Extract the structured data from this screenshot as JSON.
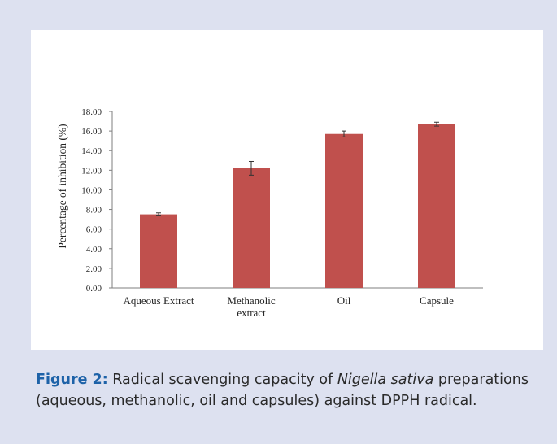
{
  "colors": {
    "background": "#dde1f0",
    "panel": "#ffffff",
    "bar": "#c0504d",
    "caption_label": "#1d62a8",
    "axis": "#7f7f7f"
  },
  "chart_data": {
    "type": "bar",
    "categories": [
      [
        "Aqueous Extract"
      ],
      [
        "Methanolic",
        "extract"
      ],
      [
        "Oil"
      ],
      [
        "Capsule"
      ]
    ],
    "values": [
      7.5,
      12.2,
      15.7,
      16.7
    ],
    "errors": [
      0.15,
      0.7,
      0.3,
      0.2
    ],
    "ylabel": "Percentage of inhibition (%)",
    "xlabel": "",
    "ylim": [
      0,
      18
    ],
    "yticks": [
      "0.00",
      "2.00",
      "4.00",
      "6.00",
      "8.00",
      "10.00",
      "12.00",
      "14.00",
      "16.00",
      "18.00"
    ],
    "grid": false,
    "error_bars": true
  },
  "caption": {
    "label": "Figure 2:",
    "text_before": " Radical scavenging capacity of ",
    "italic": "Nigella sativa",
    "text_after": " preparations (aqueous, methanolic, oil and capsules) against DPPH radical."
  }
}
